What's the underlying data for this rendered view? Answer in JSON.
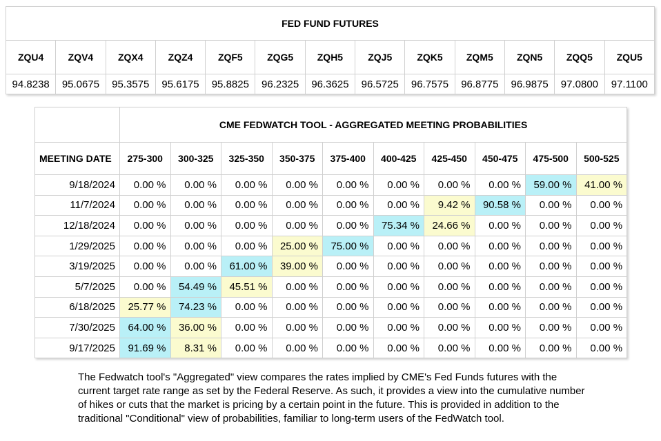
{
  "futures": {
    "title": "FED FUND FUTURES",
    "contracts": [
      {
        "symbol": "ZQU4",
        "price": "94.8238"
      },
      {
        "symbol": "ZQV4",
        "price": "95.0675"
      },
      {
        "symbol": "ZQX4",
        "price": "95.3575"
      },
      {
        "symbol": "ZQZ4",
        "price": "95.6175"
      },
      {
        "symbol": "ZQF5",
        "price": "95.8825"
      },
      {
        "symbol": "ZQG5",
        "price": "96.2325"
      },
      {
        "symbol": "ZQH5",
        "price": "96.3625"
      },
      {
        "symbol": "ZQJ5",
        "price": "96.5725"
      },
      {
        "symbol": "ZQK5",
        "price": "96.7575"
      },
      {
        "symbol": "ZQM5",
        "price": "96.8775"
      },
      {
        "symbol": "ZQN5",
        "price": "96.9875"
      },
      {
        "symbol": "ZQQ5",
        "price": "97.0800"
      },
      {
        "symbol": "ZQU5",
        "price": "97.1100"
      }
    ]
  },
  "fedwatch": {
    "title": "CME FEDWATCH TOOL - AGGREGATED MEETING PROBABILITIES",
    "date_header": "MEETING DATE",
    "ranges": [
      "275-300",
      "300-325",
      "325-350",
      "350-375",
      "375-400",
      "400-425",
      "425-450",
      "450-475",
      "475-500",
      "500-525"
    ],
    "highlight_colors": {
      "max": "#b9f0f7",
      "second": "#fbfbcf"
    },
    "rows": [
      {
        "date": "9/18/2024",
        "values": [
          "0.00 %",
          "0.00 %",
          "0.00 %",
          "0.00 %",
          "0.00 %",
          "0.00 %",
          "0.00 %",
          "0.00 %",
          "59.00 %",
          "41.00 %"
        ],
        "highlight": [
          null,
          null,
          null,
          null,
          null,
          null,
          null,
          null,
          "max",
          "second"
        ]
      },
      {
        "date": "11/7/2024",
        "values": [
          "0.00 %",
          "0.00 %",
          "0.00 %",
          "0.00 %",
          "0.00 %",
          "0.00 %",
          "9.42 %",
          "90.58 %",
          "0.00 %",
          "0.00 %"
        ],
        "highlight": [
          null,
          null,
          null,
          null,
          null,
          null,
          "second",
          "max",
          null,
          null
        ]
      },
      {
        "date": "12/18/2024",
        "values": [
          "0.00 %",
          "0.00 %",
          "0.00 %",
          "0.00 %",
          "0.00 %",
          "75.34 %",
          "24.66 %",
          "0.00 %",
          "0.00 %",
          "0.00 %"
        ],
        "highlight": [
          null,
          null,
          null,
          null,
          null,
          "max",
          "second",
          null,
          null,
          null
        ]
      },
      {
        "date": "1/29/2025",
        "values": [
          "0.00 %",
          "0.00 %",
          "0.00 %",
          "25.00 %",
          "75.00 %",
          "0.00 %",
          "0.00 %",
          "0.00 %",
          "0.00 %",
          "0.00 %"
        ],
        "highlight": [
          null,
          null,
          null,
          "second",
          "max",
          null,
          null,
          null,
          null,
          null
        ]
      },
      {
        "date": "3/19/2025",
        "values": [
          "0.00 %",
          "0.00 %",
          "61.00 %",
          "39.00 %",
          "0.00 %",
          "0.00 %",
          "0.00 %",
          "0.00 %",
          "0.00 %",
          "0.00 %"
        ],
        "highlight": [
          null,
          null,
          "max",
          "second",
          null,
          null,
          null,
          null,
          null,
          null
        ]
      },
      {
        "date": "5/7/2025",
        "values": [
          "0.00 %",
          "54.49 %",
          "45.51 %",
          "0.00 %",
          "0.00 %",
          "0.00 %",
          "0.00 %",
          "0.00 %",
          "0.00 %",
          "0.00 %"
        ],
        "highlight": [
          null,
          "max",
          "second",
          null,
          null,
          null,
          null,
          null,
          null,
          null
        ]
      },
      {
        "date": "6/18/2025",
        "values": [
          "25.77 %",
          "74.23 %",
          "0.00 %",
          "0.00 %",
          "0.00 %",
          "0.00 %",
          "0.00 %",
          "0.00 %",
          "0.00 %",
          "0.00 %"
        ],
        "highlight": [
          "second",
          "max",
          null,
          null,
          null,
          null,
          null,
          null,
          null,
          null
        ]
      },
      {
        "date": "7/30/2025",
        "values": [
          "64.00 %",
          "36.00 %",
          "0.00 %",
          "0.00 %",
          "0.00 %",
          "0.00 %",
          "0.00 %",
          "0.00 %",
          "0.00 %",
          "0.00 %"
        ],
        "highlight": [
          "max",
          "second",
          null,
          null,
          null,
          null,
          null,
          null,
          null,
          null
        ]
      },
      {
        "date": "9/17/2025",
        "values": [
          "91.69 %",
          "8.31 %",
          "0.00 %",
          "0.00 %",
          "0.00 %",
          "0.00 %",
          "0.00 %",
          "0.00 %",
          "0.00 %",
          "0.00 %"
        ],
        "highlight": [
          "max",
          "second",
          null,
          null,
          null,
          null,
          null,
          null,
          null,
          null
        ]
      }
    ]
  },
  "note": "The Fedwatch tool's \"Aggregated\" view compares the rates implied by CME's Fed Funds futures with the current target rate range as set by the Federal Reserve. As such, it provides a view into the cumulative number of hikes or cuts that the market is pricing by a certain point in the future. This is provided in addition to the traditional \"Conditional\" view of probabilities, familiar to long-term users of the FedWatch tool."
}
